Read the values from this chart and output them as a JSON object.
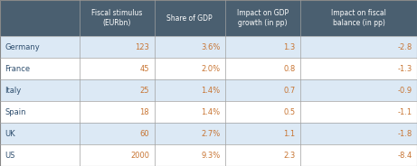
{
  "countries": [
    "Germany",
    "France",
    "Italy",
    "Spain",
    "UK",
    "US"
  ],
  "fiscal_stimulus": [
    "123",
    "45",
    "25",
    "18",
    "60",
    "2000"
  ],
  "share_of_gdp": [
    "3.6%",
    "2.0%",
    "1.4%",
    "1.4%",
    "2.7%",
    "9.3%"
  ],
  "impact_gdp_growth": [
    "1.3",
    "0.8",
    "0.7",
    "0.5",
    "1.1",
    "2.3"
  ],
  "impact_fiscal_balance": [
    "-2.8",
    "-1.3",
    "-0.9",
    "-1.1",
    "-1.8",
    "-8.4"
  ],
  "header_bg": "#4a5f70",
  "header_text": "#ffffff",
  "row_bg_odd": "#dce9f5",
  "row_bg_even": "#ffffff",
  "data_text_color": "#c87533",
  "country_text_color": "#2f4f6f",
  "col_headers": [
    "Fiscal stimulus\n(EURbn)",
    "Share of GDP",
    "Impact on GDP\ngrowth (in pp)",
    "Impact on fiscal\nbalance (in pp)"
  ],
  "figsize": [
    4.61,
    1.84
  ],
  "dpi": 100
}
